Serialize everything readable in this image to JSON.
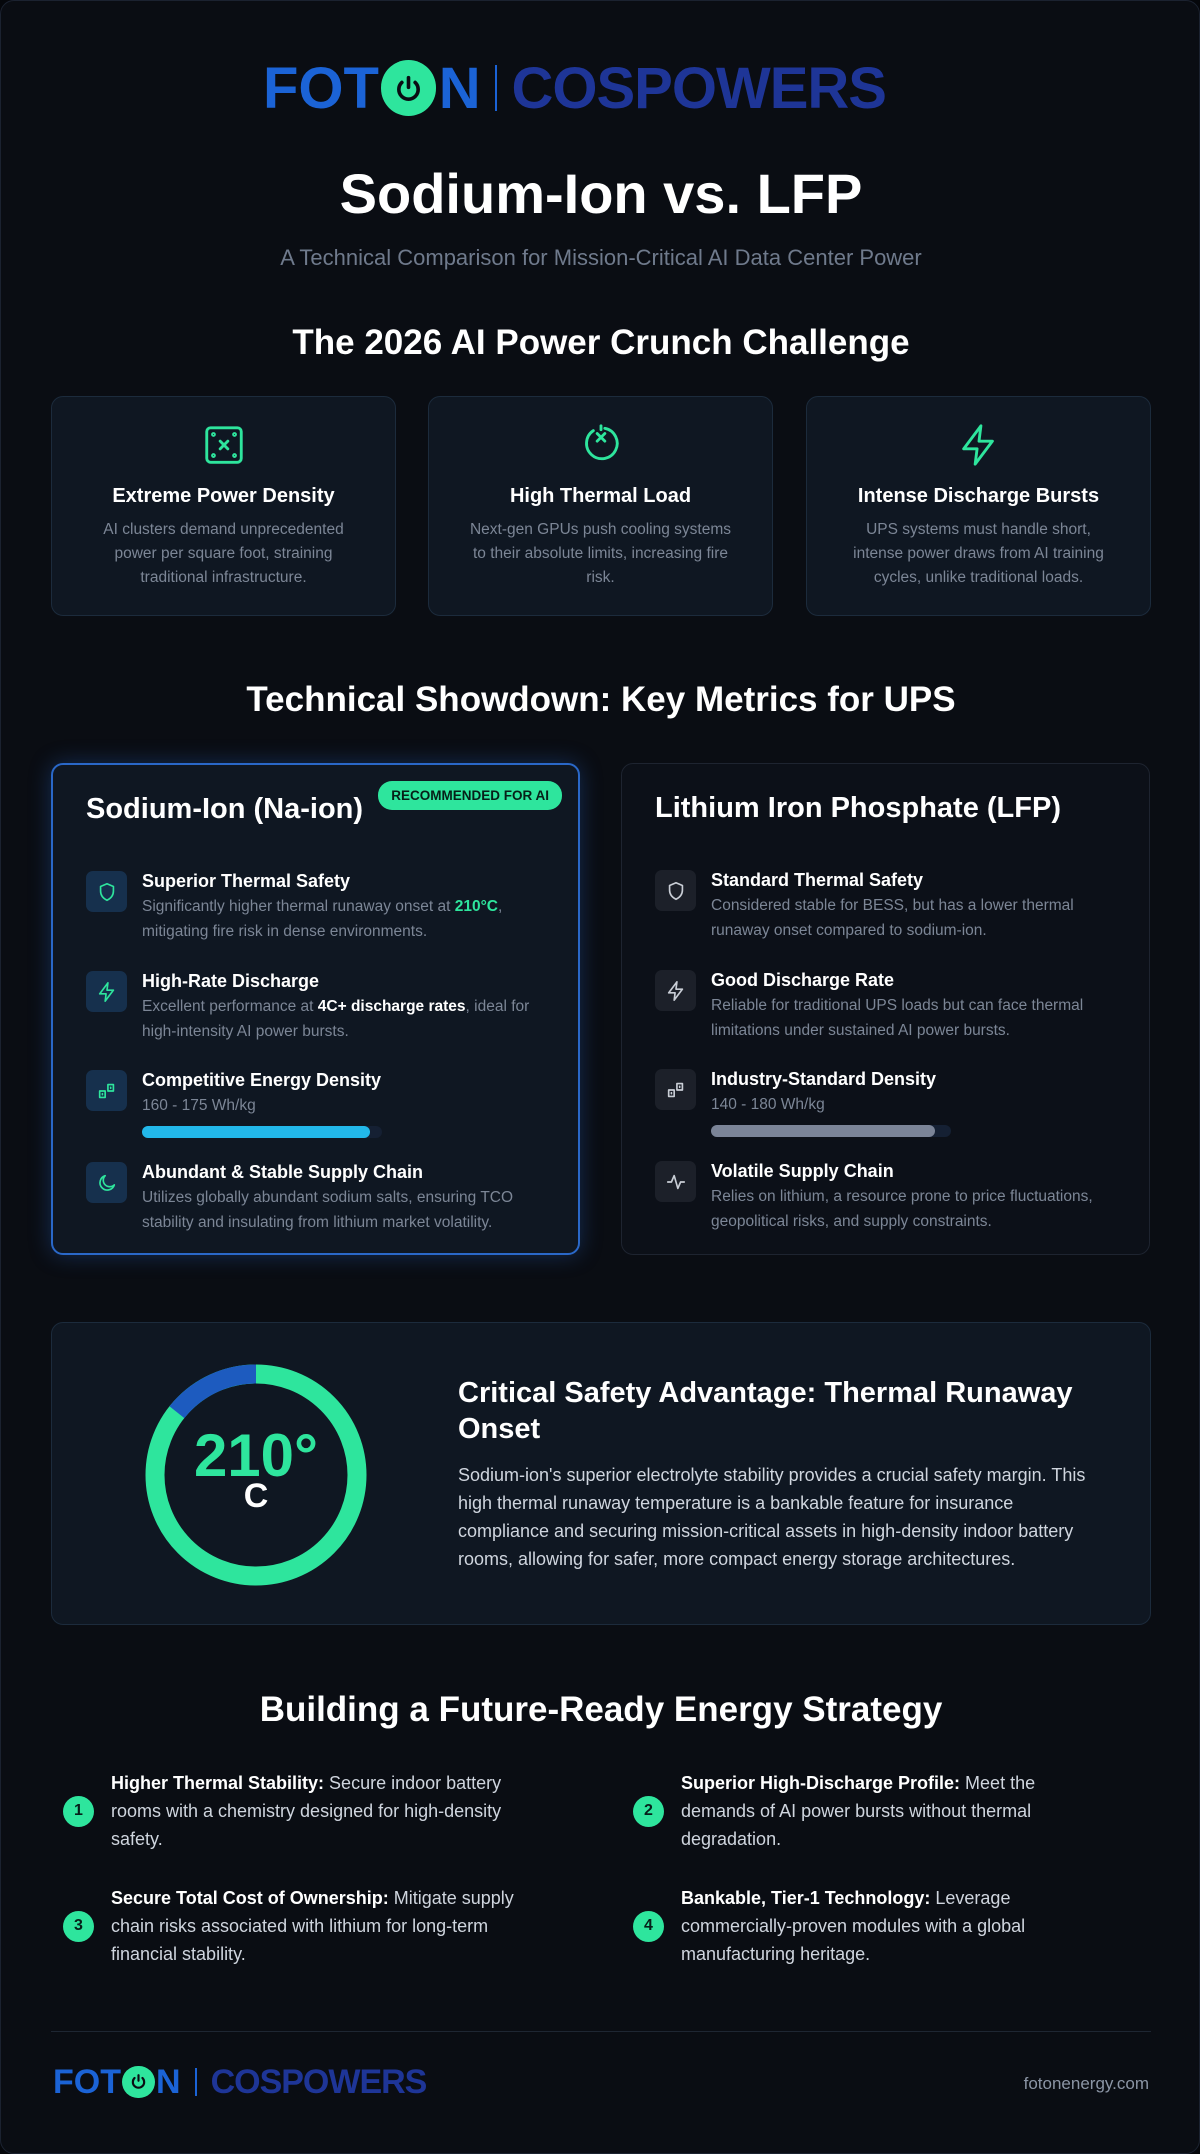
{
  "header": {
    "logo": {
      "left_parts": [
        "FOT",
        "N"
      ],
      "right": "COSPOWERS"
    },
    "title": "Sodium-Ion vs. LFP",
    "subtitle": "A Technical Comparison for Mission-Critical AI Data Center Power"
  },
  "challenge": {
    "heading": "The 2026 AI Power Crunch Challenge",
    "cards": [
      {
        "title": "Extreme Power Density",
        "text": "AI clusters demand unprecedented power per square foot, straining traditional infrastructure."
      },
      {
        "title": "High Thermal Load",
        "text": "Next-gen GPUs push cooling systems to their absolute limits, increasing fire risk."
      },
      {
        "title": "Intense Discharge Bursts",
        "text": "UPS systems must handle short, intense power draws from AI training cycles, unlike traditional loads."
      }
    ]
  },
  "showdown": {
    "heading": "Technical Showdown: Key Metrics for UPS",
    "sodium": {
      "title": "Sodium-Ion (Na-ion)",
      "badge": "RECOMMENDED FOR AI",
      "items": [
        {
          "title": "Superior Thermal Safety",
          "text_before": "Significantly higher thermal runaway onset at ",
          "highlight": "210°C",
          "text_after": ", mitigating fire risk in dense environments."
        },
        {
          "title": "High-Rate Discharge",
          "text_before": "Excellent performance at ",
          "highlight": "4C+ discharge rates",
          "text_after": ", ideal for high-intensity AI power bursts."
        },
        {
          "title": "Competitive Energy Density",
          "text": "160 - 175 Wh/kg"
        },
        {
          "title": "Abundant & Stable Supply Chain",
          "text": "Utilizes globally abundant sodium salts, ensuring TCO stability and insulating from lithium market volatility."
        }
      ]
    },
    "lfp": {
      "title": "Lithium Iron Phosphate (LFP)",
      "items": [
        {
          "title": "Standard Thermal Safety",
          "text": "Considered stable for BESS, but has a lower thermal runaway onset compared to sodium-ion."
        },
        {
          "title": "Good Discharge Rate",
          "text": "Reliable for traditional UPS loads but can face thermal limitations under sustained AI power bursts."
        },
        {
          "title": "Industry-Standard Density",
          "text": "140 - 180 Wh/kg"
        },
        {
          "title": "Volatile Supply Chain",
          "text": "Relies on lithium, a resource prone to price fluctuations, geopolitical risks, and supply constraints."
        }
      ]
    }
  },
  "safety": {
    "gauge_value": "210°",
    "gauge_unit": "C",
    "title": "Critical Safety Advantage: Thermal Runaway Onset",
    "text": "Sodium-ion's superior electrolyte stability provides a crucial safety margin. This high thermal runaway temperature is a bankable feature for insurance compliance and securing mission-critical assets in high-density indoor battery rooms, allowing for safer, more compact energy storage architectures."
  },
  "strategy": {
    "heading": "Building a Future-Ready Energy Strategy",
    "items": [
      {
        "number": "1",
        "lead": "Higher Thermal Stability:",
        "text": " Secure indoor battery rooms with a chemistry designed for high-density safety."
      },
      {
        "number": "2",
        "lead": "Superior High-Discharge Profile:",
        "text": " Meet the demands of AI power bursts without thermal degradation."
      },
      {
        "number": "3",
        "lead": "Secure Total Cost of Ownership:",
        "text": " Mitigate supply chain risks associated with lithium for long-term financial stability."
      },
      {
        "number": "4",
        "lead": "Bankable, Tier-1 Technology:",
        "text": " Leverage commercially-proven modules with a global manufacturing heritage."
      }
    ]
  },
  "footer": {
    "url": "fotonenergy.com"
  }
}
